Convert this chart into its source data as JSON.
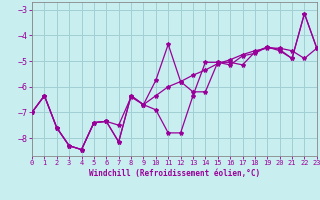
{
  "xlabel": "Windchill (Refroidissement éolien,°C)",
  "background_color": "#c8eef0",
  "grid_color": "#a0cfd4",
  "line_color": "#990099",
  "spine_color": "#888888",
  "x_data": [
    0,
    1,
    2,
    3,
    4,
    5,
    6,
    7,
    8,
    9,
    10,
    11,
    12,
    13,
    14,
    15,
    16,
    17,
    18,
    19,
    20,
    21,
    22,
    23
  ],
  "y_line1": [
    -7.0,
    -6.35,
    -7.6,
    -8.3,
    -8.45,
    -7.4,
    -7.35,
    -7.5,
    -6.4,
    -6.7,
    -6.35,
    -6.0,
    -5.8,
    -5.55,
    -5.35,
    -5.1,
    -4.95,
    -4.75,
    -4.6,
    -4.5,
    -4.5,
    -4.6,
    -4.9,
    -4.5
  ],
  "y_line2": [
    -7.0,
    -6.35,
    -7.6,
    -8.3,
    -8.45,
    -7.4,
    -7.35,
    -8.15,
    -6.35,
    -6.7,
    -6.9,
    -7.8,
    -7.8,
    -6.35,
    -5.05,
    -5.05,
    -5.15,
    -4.8,
    -4.7,
    -4.45,
    -4.6,
    -4.9,
    -3.15,
    -4.5
  ],
  "y_line3": [
    -7.0,
    -6.35,
    -7.6,
    -8.3,
    -8.45,
    -7.4,
    -7.35,
    -8.15,
    -6.35,
    -6.7,
    -5.75,
    -4.35,
    -5.8,
    -6.2,
    -6.2,
    -5.05,
    -5.05,
    -5.15,
    -4.65,
    -4.45,
    -4.55,
    -4.9,
    -3.15,
    -4.5
  ],
  "xlim": [
    0,
    23
  ],
  "ylim": [
    -8.7,
    -2.7
  ],
  "yticks": [
    -8,
    -7,
    -6,
    -5,
    -4,
    -3
  ],
  "xticks": [
    0,
    1,
    2,
    3,
    4,
    5,
    6,
    7,
    8,
    9,
    10,
    11,
    12,
    13,
    14,
    15,
    16,
    17,
    18,
    19,
    20,
    21,
    22,
    23
  ]
}
